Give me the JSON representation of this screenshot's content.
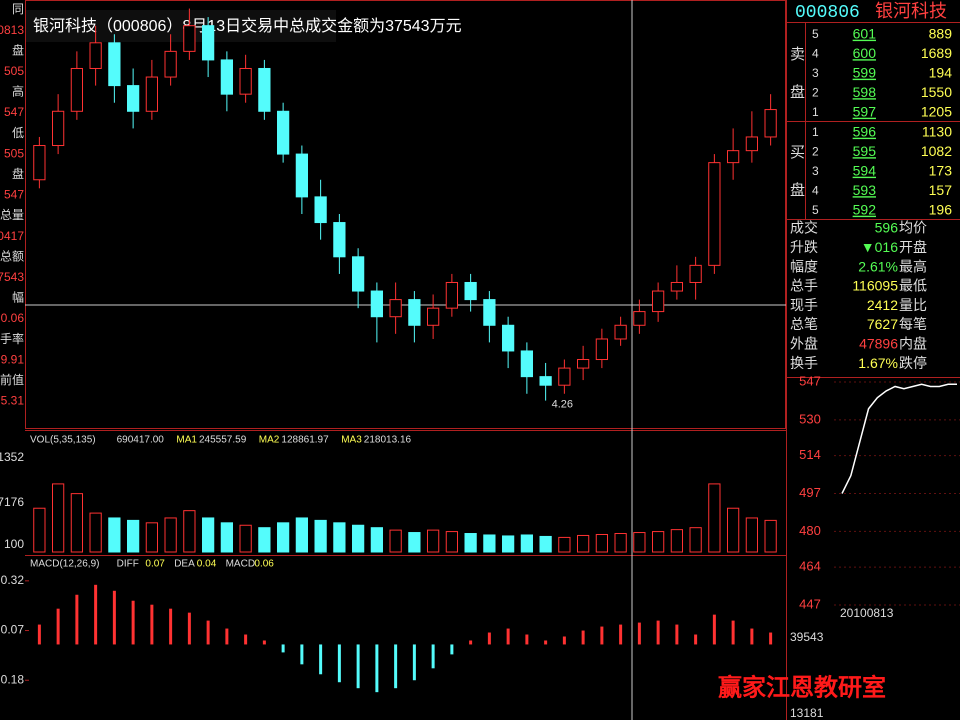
{
  "title": "银河科技（000806）8月13日交易中总成交金额为37543万元",
  "left_labels": [
    "同",
    "0813",
    "盘",
    "505",
    "高",
    "547",
    "低",
    "505",
    "盘",
    "547",
    "总量",
    "0417",
    "总额",
    "7543",
    "幅",
    "0.06",
    "手率",
    "9.91",
    "前值",
    "5.31"
  ],
  "main_chart": {
    "ylim": [
      4.1,
      6.6
    ],
    "low_label": "4.26",
    "up_color": "#ff3232",
    "down_color": "#54fcfc",
    "candles": [
      [
        5.55,
        5.75,
        5.8,
        5.5
      ],
      [
        5.75,
        5.95,
        6.05,
        5.7
      ],
      [
        5.95,
        6.2,
        6.3,
        5.9
      ],
      [
        6.2,
        6.35,
        6.45,
        6.1
      ],
      [
        6.35,
        6.1,
        6.4,
        6.0
      ],
      [
        6.1,
        5.95,
        6.2,
        5.85
      ],
      [
        5.95,
        6.15,
        6.25,
        5.9
      ],
      [
        6.15,
        6.3,
        6.4,
        6.1
      ],
      [
        6.3,
        6.45,
        6.55,
        6.25
      ],
      [
        6.45,
        6.25,
        6.5,
        6.15
      ],
      [
        6.25,
        6.05,
        6.3,
        5.95
      ],
      [
        6.05,
        6.2,
        6.28,
        6.0
      ],
      [
        6.2,
        5.95,
        6.25,
        5.9
      ],
      [
        5.95,
        5.7,
        6.0,
        5.65
      ],
      [
        5.7,
        5.45,
        5.75,
        5.35
      ],
      [
        5.45,
        5.3,
        5.55,
        5.2
      ],
      [
        5.3,
        5.1,
        5.35,
        5.0
      ],
      [
        5.1,
        4.9,
        5.15,
        4.8
      ],
      [
        4.9,
        4.75,
        4.95,
        4.6
      ],
      [
        4.75,
        4.85,
        4.95,
        4.65
      ],
      [
        4.85,
        4.7,
        4.9,
        4.6
      ],
      [
        4.7,
        4.8,
        4.88,
        4.62
      ],
      [
        4.8,
        4.95,
        5.0,
        4.75
      ],
      [
        4.95,
        4.85,
        5.0,
        4.78
      ],
      [
        4.85,
        4.7,
        4.9,
        4.6
      ],
      [
        4.7,
        4.55,
        4.75,
        4.45
      ],
      [
        4.55,
        4.4,
        4.6,
        4.3
      ],
      [
        4.4,
        4.35,
        4.48,
        4.26
      ],
      [
        4.35,
        4.45,
        4.5,
        4.3
      ],
      [
        4.45,
        4.5,
        4.58,
        4.38
      ],
      [
        4.5,
        4.62,
        4.68,
        4.45
      ],
      [
        4.62,
        4.7,
        4.75,
        4.58
      ],
      [
        4.7,
        4.78,
        4.85,
        4.65
      ],
      [
        4.78,
        4.9,
        4.95,
        4.72
      ],
      [
        4.9,
        4.95,
        5.05,
        4.85
      ],
      [
        4.95,
        5.05,
        5.1,
        4.85
      ],
      [
        5.05,
        5.65,
        5.7,
        5.0
      ],
      [
        5.65,
        5.72,
        5.85,
        5.55
      ],
      [
        5.72,
        5.8,
        5.95,
        5.65
      ],
      [
        5.8,
        5.96,
        6.05,
        5.75
      ]
    ]
  },
  "volume_chart": {
    "header": [
      "VOL(5,35,135)",
      "690417.00",
      "MA1",
      "245557.59",
      "MA2",
      "128861.97",
      "MA3",
      "218013.16"
    ],
    "axis_labels": [
      "1352",
      "7176",
      "100"
    ],
    "ylim": [
      0,
      22000
    ],
    "values": [
      9000,
      14000,
      12000,
      8000,
      7000,
      6500,
      6000,
      7000,
      8500,
      7000,
      6000,
      5500,
      5000,
      6000,
      7000,
      6500,
      6000,
      5500,
      5000,
      4500,
      4000,
      4500,
      4200,
      3800,
      3500,
      3300,
      3500,
      3200,
      3000,
      3400,
      3600,
      3800,
      4000,
      4200,
      4600,
      5000,
      14000,
      9000,
      7000,
      6500
    ]
  },
  "macd_chart": {
    "header": [
      "MACD(12,26,9)",
      "DIFF",
      "0.07",
      "DEA",
      "0.04",
      "MACD",
      "0.06"
    ],
    "ylim": [
      -0.38,
      0.45
    ],
    "yticks": [
      0.32,
      0.07,
      {
        "value": -0.18,
        "label": "0.18"
      }
    ],
    "values": [
      0.1,
      0.18,
      0.25,
      0.3,
      0.27,
      0.22,
      0.2,
      0.18,
      0.16,
      0.12,
      0.08,
      0.05,
      0.02,
      -0.04,
      -0.1,
      -0.15,
      -0.19,
      -0.22,
      -0.24,
      -0.22,
      -0.18,
      -0.12,
      -0.05,
      0.02,
      0.06,
      0.08,
      0.05,
      0.02,
      0.04,
      0.07,
      0.09,
      0.1,
      0.11,
      0.12,
      0.1,
      0.05,
      0.15,
      0.12,
      0.08,
      0.06
    ]
  },
  "quote": {
    "code": "000806",
    "name": "银河科技"
  },
  "order_book": {
    "sell_label": [
      "卖",
      "盘"
    ],
    "buy_label": [
      "买",
      "盘"
    ],
    "sell": [
      [
        "5",
        "601",
        "889"
      ],
      [
        "4",
        "600",
        "1689"
      ],
      [
        "3",
        "599",
        "194"
      ],
      [
        "2",
        "598",
        "1550"
      ],
      [
        "1",
        "597",
        "1205"
      ]
    ],
    "buy": [
      [
        "1",
        "596",
        "1130"
      ],
      [
        "2",
        "595",
        "1082"
      ],
      [
        "3",
        "594",
        "173"
      ],
      [
        "4",
        "593",
        "157"
      ],
      [
        "5",
        "592",
        "196"
      ]
    ]
  },
  "stats": [
    [
      "成交",
      "596",
      "均价"
    ],
    [
      "升跌",
      "▼016",
      "开盘"
    ],
    [
      "幅度",
      "2.61%",
      "最高"
    ],
    [
      "总手",
      "116095",
      "最低"
    ],
    [
      "现手",
      "2412",
      "量比"
    ],
    [
      "总笔",
      "7627",
      "每笔"
    ],
    [
      "外盘",
      "47896",
      "内盘"
    ],
    [
      "换手",
      "1.67%",
      "跌停"
    ]
  ],
  "intraday": {
    "ylim": [
      442.5,
      548.8
    ],
    "yticks": [
      547,
      530,
      514,
      497,
      480,
      464,
      447
    ],
    "values": [
      497,
      505,
      520,
      535,
      540,
      543,
      545,
      544,
      545,
      546,
      545,
      545,
      546,
      546
    ],
    "date": "20100813",
    "volume_labels": [
      "39543",
      "13181"
    ]
  },
  "watermark": "赢家江恩教研室"
}
